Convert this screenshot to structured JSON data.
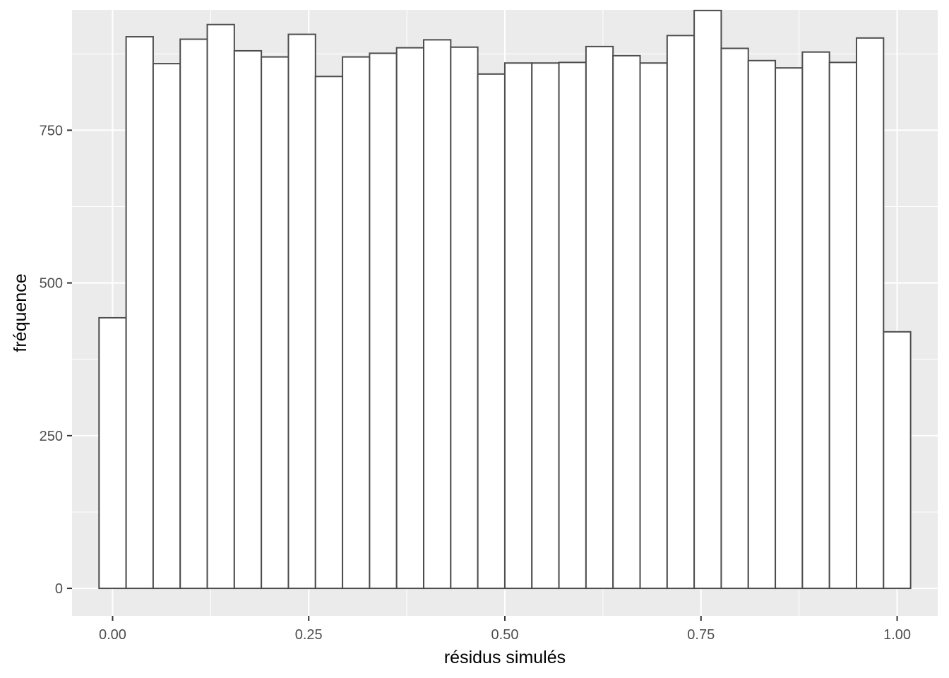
{
  "chart_data": {
    "type": "bar",
    "subtype": "histogram",
    "xlabel": "résidus simulés",
    "ylabel": "fréquence",
    "xlim": [
      -0.0517,
      1.0517
    ],
    "ylim": [
      -45,
      947
    ],
    "x_ticks": [
      {
        "value": 0.0,
        "label": "0.00"
      },
      {
        "value": 0.25,
        "label": "0.25"
      },
      {
        "value": 0.5,
        "label": "0.50"
      },
      {
        "value": 0.75,
        "label": "0.75"
      },
      {
        "value": 1.0,
        "label": "1.00"
      }
    ],
    "y_ticks": [
      {
        "value": 0,
        "label": "0"
      },
      {
        "value": 250,
        "label": "250"
      },
      {
        "value": 500,
        "label": "500"
      },
      {
        "value": 750,
        "label": "750"
      }
    ],
    "bin_width": 0.03448,
    "bins_start": -0.01724,
    "values": [
      443,
      903,
      859,
      899,
      923,
      880,
      870,
      907,
      838,
      870,
      876,
      885,
      898,
      886,
      842,
      860,
      860,
      861,
      887,
      872,
      860,
      905,
      946,
      884,
      864,
      852,
      878,
      861,
      901,
      420
    ],
    "grid": true,
    "colors": {
      "panel_background": "#ebebeb",
      "grid_line": "#ffffff",
      "bar_fill": "#ffffff",
      "bar_outline": "#4d4d4d",
      "tick_mark": "#333333"
    }
  }
}
